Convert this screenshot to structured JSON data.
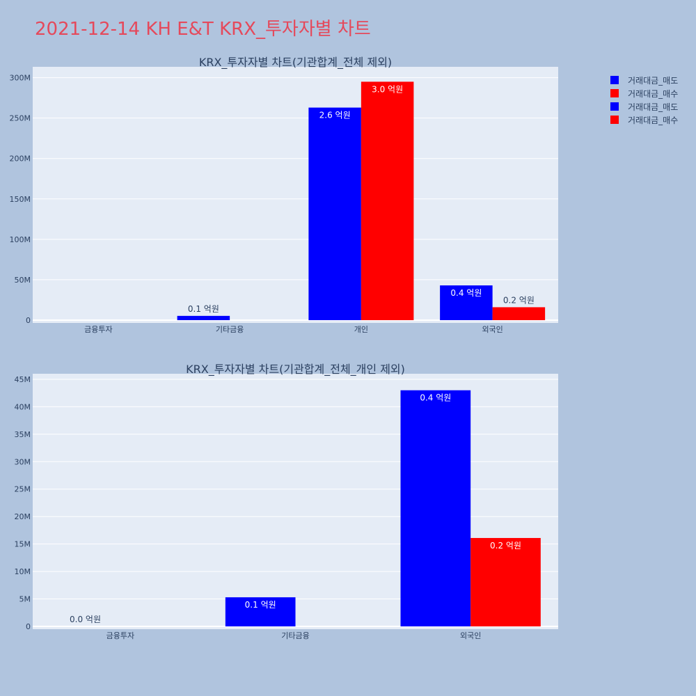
{
  "page_title": "2021-12-14 KH E&T KRX_투자자별 차트",
  "legend": [
    {
      "label": "거래대금_매도",
      "color": "#0000ff"
    },
    {
      "label": "거래대금_매수",
      "color": "#ff0000"
    },
    {
      "label": "거래대금_매도",
      "color": "#0000ff"
    },
    {
      "label": "거래대금_매수",
      "color": "#ff0000"
    }
  ],
  "chart_data": [
    {
      "type": "bar",
      "title": "KRX_투자자별 차트(기관합계_전체 제외)",
      "categories": [
        "금융투자",
        "기타금융",
        "개인",
        "외국인"
      ],
      "ylim": [
        0,
        310000000
      ],
      "yticks": [
        0,
        50000000,
        100000000,
        150000000,
        200000000,
        250000000,
        300000000
      ],
      "ytick_labels": [
        "0",
        "50M",
        "100M",
        "150M",
        "200M",
        "250M",
        "300M"
      ],
      "grid": true,
      "series": [
        {
          "name": "거래대금_매도",
          "color": "#0000ff",
          "values": [
            0,
            5300000,
            263000000,
            43000000
          ],
          "labels": [
            "",
            "0.1 억원",
            "2.6 억원",
            "0.4 억원"
          ]
        },
        {
          "name": "거래대금_매수",
          "color": "#ff0000",
          "values": [
            0,
            0,
            295000000,
            16000000
          ],
          "labels": [
            "",
            "",
            "3.0 억원",
            "0.2 억원"
          ]
        }
      ]
    },
    {
      "type": "bar",
      "title": "KRX_투자자별 차트(기관합계_전체_개인 제외)",
      "categories": [
        "금융투자",
        "기타금융",
        "외국인"
      ],
      "ylim": [
        0,
        45500000
      ],
      "yticks": [
        0,
        5000000,
        10000000,
        15000000,
        20000000,
        25000000,
        30000000,
        35000000,
        40000000,
        45000000
      ],
      "ytick_labels": [
        "0",
        "5M",
        "10M",
        "15M",
        "20M",
        "25M",
        "30M",
        "35M",
        "40M",
        "45M"
      ],
      "grid": true,
      "series": [
        {
          "name": "거래대금_매도",
          "color": "#0000ff",
          "values": [
            0,
            5300000,
            43000000
          ],
          "labels": [
            "0.0 억원",
            "0.1 억원",
            "0.4 억원"
          ]
        },
        {
          "name": "거래대금_매수",
          "color": "#ff0000",
          "values": [
            0,
            0,
            16100000
          ],
          "labels": [
            "",
            "",
            "0.2 억원"
          ]
        }
      ]
    }
  ]
}
